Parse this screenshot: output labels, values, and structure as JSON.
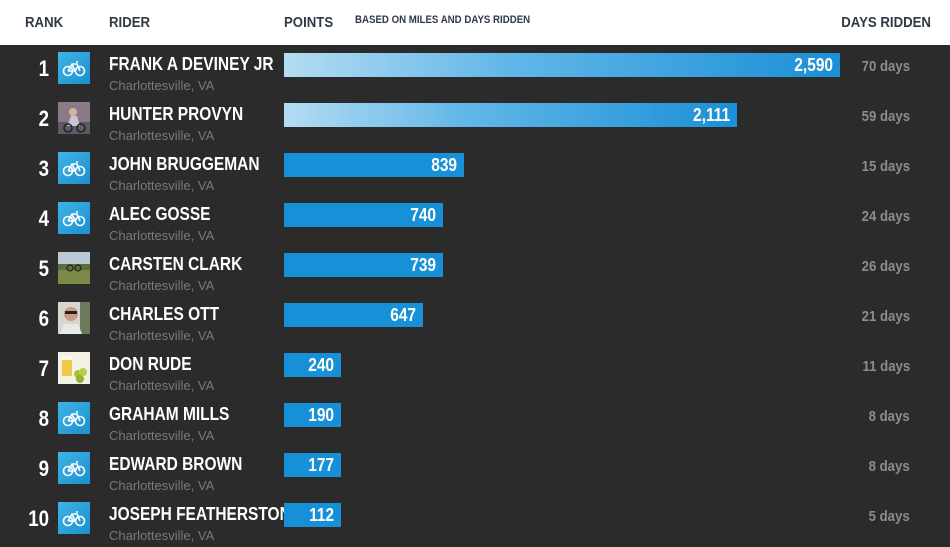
{
  "header": {
    "rank": "RANK",
    "rider": "RIDER",
    "points": "POINTS",
    "points_note": "BASED ON MILES AND DAYS RIDDEN",
    "days": "DAYS RIDDEN"
  },
  "colors": {
    "bar": "#1890d8",
    "bar_light": "#b4dcf2",
    "background": "#2b2b2b",
    "header_bg": "#ffffff"
  },
  "leaderboard": [
    {
      "rank": "1",
      "name": "FRANK A DEVINEY JR",
      "location": "Charlottesville, VA",
      "points": 2590,
      "points_label": "2,590",
      "days": "70 days",
      "avatar": "bike-icon"
    },
    {
      "rank": "2",
      "name": "HUNTER PROVYN",
      "location": "Charlottesville, VA",
      "points": 2111,
      "points_label": "2,111",
      "days": "59 days",
      "avatar": "photo-cyclist"
    },
    {
      "rank": "3",
      "name": "JOHN BRUGGEMAN",
      "location": "Charlottesville, VA",
      "points": 839,
      "points_label": "839",
      "days": "15 days",
      "avatar": "bike-icon"
    },
    {
      "rank": "4",
      "name": "ALEC GOSSE",
      "location": "Charlottesville, VA",
      "points": 740,
      "points_label": "740",
      "days": "24 days",
      "avatar": "bike-icon"
    },
    {
      "rank": "5",
      "name": "CARSTEN CLARK",
      "location": "Charlottesville, VA",
      "points": 739,
      "points_label": "739",
      "days": "26 days",
      "avatar": "photo-landscape"
    },
    {
      "rank": "6",
      "name": "CHARLES OTT",
      "location": "Charlottesville, VA",
      "points": 647,
      "points_label": "647",
      "days": "21 days",
      "avatar": "photo-person"
    },
    {
      "rank": "7",
      "name": "DON RUDE",
      "location": "Charlottesville, VA",
      "points": 240,
      "points_label": "240",
      "days": "11 days",
      "avatar": "photo-drink"
    },
    {
      "rank": "8",
      "name": "GRAHAM MILLS",
      "location": "Charlottesville, VA",
      "points": 190,
      "points_label": "190",
      "days": "8 days",
      "avatar": "bike-icon"
    },
    {
      "rank": "9",
      "name": "EDWARD BROWN",
      "location": "Charlottesville, VA",
      "points": 177,
      "points_label": "177",
      "days": "8 days",
      "avatar": "bike-icon"
    },
    {
      "rank": "10",
      "name": "JOSEPH FEATHERSTON",
      "location": "Charlottesville, VA",
      "points": 112,
      "points_label": "112",
      "days": "5 days",
      "avatar": "bike-icon"
    }
  ]
}
